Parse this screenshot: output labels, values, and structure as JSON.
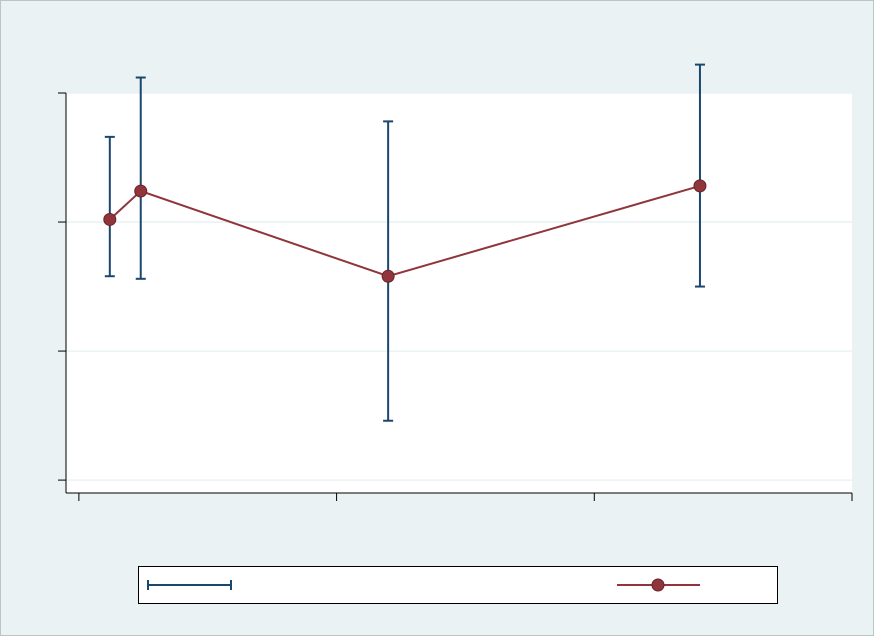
{
  "chart_data": {
    "type": "line",
    "title": "",
    "xlabel": "",
    "ylabel": "",
    "xlim": [
      -0.05,
      3.0
    ],
    "ylim": [
      -0.05,
      1.5
    ],
    "xticks": [
      0,
      1,
      2,
      3
    ],
    "yticks": [
      0,
      0.5,
      1,
      1.5
    ],
    "grid": true,
    "legend_position": "bottom",
    "series": [
      {
        "kind": "errorbar",
        "color": "#1a476f",
        "x": [
          0.12,
          0.24,
          1.2,
          2.41
        ],
        "lower": [
          0.79,
          0.78,
          0.23,
          0.75
        ],
        "upper": [
          1.33,
          1.56,
          1.39,
          1.61
        ]
      },
      {
        "kind": "line-marker",
        "color": "#90353b",
        "x": [
          0.12,
          0.24,
          1.2,
          2.41
        ],
        "y": [
          1.01,
          1.12,
          0.79,
          1.14
        ]
      }
    ]
  }
}
